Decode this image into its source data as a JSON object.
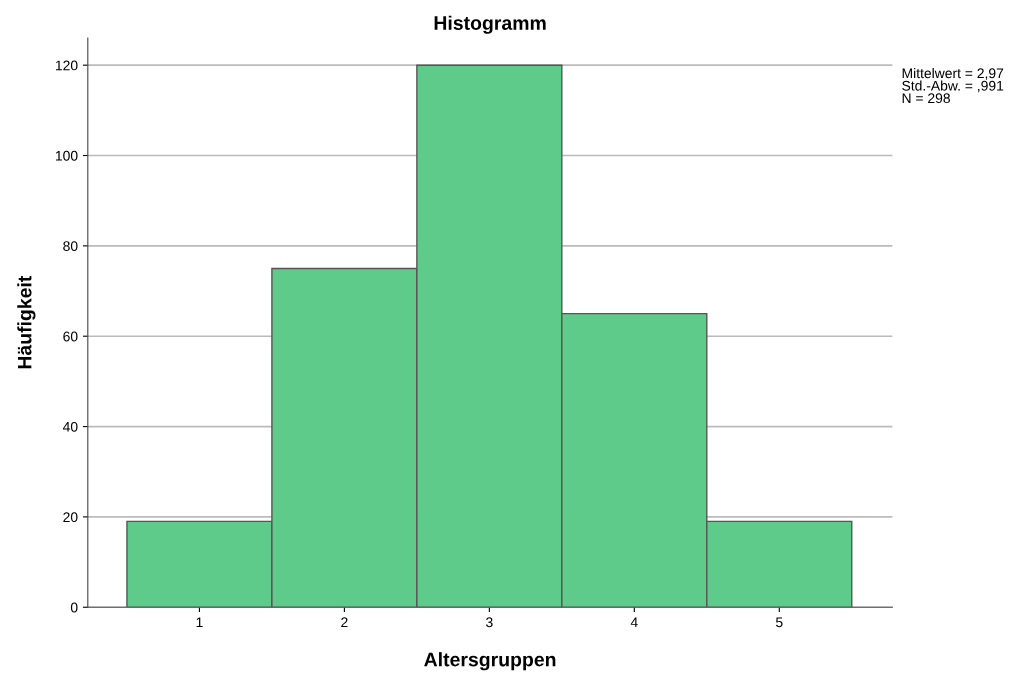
{
  "chart_data": {
    "type": "histogram",
    "title": "Histogramm",
    "xlabel": "Altersgruppen",
    "ylabel": "Häufigkeit",
    "bins": [
      0.5,
      1.5,
      2.5,
      3.5,
      4.5,
      5.5
    ],
    "values": [
      19,
      75,
      120,
      65,
      19
    ],
    "color": "#5ecb8a",
    "xlim": [
      0.23,
      5.78
    ],
    "xticks": [
      1,
      2,
      3,
      4,
      5
    ],
    "ylim": [
      0,
      126
    ],
    "yticks": [
      0,
      20,
      40,
      60,
      80,
      100,
      120
    ],
    "grid": "y",
    "annotations": [
      "Mittelwert = 2,97\nStd.-Abw. = ,991\nN = 298"
    ]
  }
}
